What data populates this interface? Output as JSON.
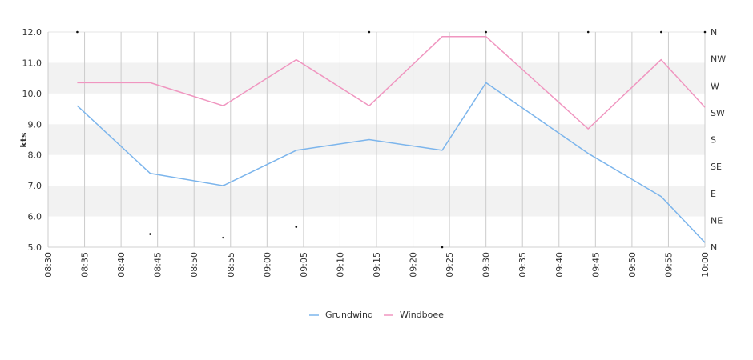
{
  "chart_data": {
    "type": "line",
    "ylabel": "kts",
    "ylim": [
      5,
      12
    ],
    "y_ticks": [
      "5.0",
      "6.0",
      "7.0",
      "8.0",
      "9.0",
      "10.0",
      "11.0",
      "12.0"
    ],
    "x_ticks": [
      "08:30",
      "08:35",
      "08:40",
      "08:45",
      "08:50",
      "08:55",
      "09:00",
      "09:05",
      "09:10",
      "09:15",
      "09:20",
      "09:25",
      "09:30",
      "09:35",
      "09:40",
      "09:45",
      "09:50",
      "09:55",
      "10:00"
    ],
    "right_axis_ticks": [
      "N",
      "NE",
      "E",
      "SE",
      "S",
      "SW",
      "W",
      "NW",
      "N"
    ],
    "grid": true,
    "legend_position": "bottom",
    "series": [
      {
        "name": "Grundwind",
        "color": "#7cb5ec",
        "x": [
          "08:34",
          "08:44",
          "08:54",
          "09:04",
          "09:14",
          "09:24",
          "09:30",
          "09:44",
          "09:54",
          "10:00"
        ],
        "values": [
          9.6,
          7.4,
          7.0,
          8.15,
          8.5,
          8.15,
          10.35,
          8.05,
          6.65,
          5.15
        ]
      },
      {
        "name": "Windboee",
        "color": "#f096c0",
        "x": [
          "08:34",
          "08:44",
          "08:54",
          "09:04",
          "09:14",
          "09:24",
          "09:30",
          "09:44",
          "09:54",
          "10:00"
        ],
        "values": [
          10.35,
          10.35,
          9.6,
          11.1,
          9.6,
          11.85,
          11.85,
          8.85,
          11.1,
          9.55
        ]
      }
    ],
    "direction_points": {
      "x": [
        "08:34",
        "08:44",
        "08:54",
        "09:04",
        "09:14",
        "09:24",
        "09:30",
        "09:44",
        "09:54",
        "10:00"
      ],
      "degrees": [
        0,
        22,
        16,
        34,
        0,
        0,
        0,
        0,
        0,
        0
      ]
    }
  },
  "legend": {
    "grundwind": "Grundwind",
    "windboee": "Windboee"
  }
}
